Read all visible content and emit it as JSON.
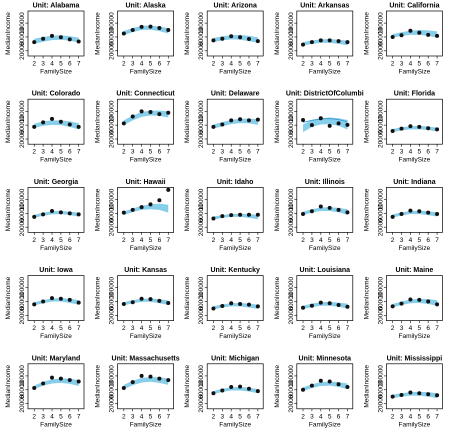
{
  "chart_data": {
    "type": "scatter",
    "layout": "5x5 small multiples",
    "xlabel": "FamilySize",
    "ylabel": "MedianIncome",
    "x_ticks": [
      2,
      3,
      4,
      5,
      6,
      7
    ],
    "y_ticks": [
      20000,
      60000,
      100000
    ],
    "y_tick_labels": [
      "20000",
      "60000",
      "100000"
    ],
    "xlim": [
      1.3,
      7.6
    ],
    "ylim": [
      5000,
      135000
    ],
    "colors": {
      "band": "#87CEEB",
      "point": "#111111",
      "line": "#3399cc"
    },
    "x": [
      2,
      3,
      4,
      5,
      6,
      7
    ],
    "panels": [
      {
        "title": "Unit: Alabama",
        "y": [
          45000,
          55000,
          63000,
          59000,
          53000,
          47000
        ],
        "band": [
          [
            40000,
            55000
          ],
          [
            46000,
            60000
          ],
          [
            51000,
            64000
          ],
          [
            52000,
            65000
          ],
          [
            49000,
            62000
          ],
          [
            44000,
            58000
          ]
        ]
      },
      {
        "title": "Unit: Alaska",
        "y": [
          70000,
          80000,
          89000,
          90000,
          86000,
          80000
        ],
        "band": [
          [
            65000,
            77000
          ],
          [
            74000,
            86000
          ],
          [
            80000,
            92000
          ],
          [
            81000,
            93000
          ],
          [
            77000,
            90000
          ],
          [
            70000,
            85000
          ]
        ]
      },
      {
        "title": "Unit: Arizona",
        "y": [
          50000,
          55000,
          62000,
          59000,
          54000,
          48000
        ],
        "band": [
          [
            45000,
            57000
          ],
          [
            50000,
            62000
          ],
          [
            53000,
            65000
          ],
          [
            52000,
            66000
          ],
          [
            48000,
            63000
          ],
          [
            43000,
            59000
          ]
        ]
      },
      {
        "title": "Unit: Arkansas",
        "y": [
          38000,
          45000,
          50000,
          50000,
          48000,
          45000
        ],
        "band": [
          [
            35000,
            45000
          ],
          [
            40000,
            50000
          ],
          [
            43000,
            53000
          ],
          [
            43000,
            54000
          ],
          [
            40000,
            52000
          ],
          [
            36000,
            49000
          ]
        ]
      },
      {
        "title": "Unit: California",
        "y": [
          60000,
          65000,
          78000,
          72000,
          66000,
          63000
        ],
        "band": [
          [
            58000,
            68000
          ],
          [
            63000,
            74000
          ],
          [
            66000,
            78000
          ],
          [
            66000,
            80000
          ],
          [
            63000,
            79000
          ],
          [
            58000,
            76000
          ]
        ]
      },
      {
        "title": "Unit: Colorado",
        "y": [
          55000,
          68000,
          78000,
          70000,
          62000,
          55000
        ],
        "band": [
          [
            52000,
            64000
          ],
          [
            58000,
            71000
          ],
          [
            61000,
            74000
          ],
          [
            60000,
            74000
          ],
          [
            55000,
            71000
          ],
          [
            48000,
            66000
          ]
        ]
      },
      {
        "title": "Unit: Connecticut",
        "y": [
          65000,
          85000,
          100000,
          98000,
          92000,
          96000
        ],
        "band": [
          [
            60000,
            74000
          ],
          [
            74000,
            88000
          ],
          [
            84000,
            98000
          ],
          [
            88000,
            102000
          ],
          [
            87000,
            102000
          ],
          [
            82000,
            100000
          ]
        ]
      },
      {
        "title": "Unit: Delaware",
        "y": [
          55000,
          62000,
          74000,
          77000,
          74000,
          76000
        ],
        "band": [
          [
            50000,
            62000
          ],
          [
            57000,
            69000
          ],
          [
            63000,
            75000
          ],
          [
            66000,
            79000
          ],
          [
            65000,
            79000
          ],
          [
            61000,
            77000
          ]
        ]
      },
      {
        "title": "Unit: DistrictOfColumbi",
        "y": [
          75000,
          60000,
          80000,
          58000,
          65000,
          61000
        ],
        "band": [
          [
            40000,
            62000
          ],
          [
            55000,
            75000
          ],
          [
            62000,
            80000
          ],
          [
            63000,
            82000
          ],
          [
            58000,
            80000
          ],
          [
            48000,
            75000
          ]
        ],
        "extra_line": [
          68000,
          74000,
          78000,
          79000,
          76000,
          70000
        ]
      },
      {
        "title": "Unit: Florida",
        "y": [
          43000,
          50000,
          57000,
          55000,
          51000,
          48000
        ],
        "band": [
          [
            40000,
            49000
          ],
          [
            45000,
            54000
          ],
          [
            48000,
            57000
          ],
          [
            48000,
            58000
          ],
          [
            46000,
            56000
          ],
          [
            42000,
            53000
          ]
        ]
      },
      {
        "title": "Unit: Georgia",
        "y": [
          50000,
          57000,
          67000,
          63000,
          60000,
          57000
        ],
        "band": [
          [
            47000,
            56000
          ],
          [
            53000,
            62000
          ],
          [
            57000,
            66000
          ],
          [
            58000,
            67000
          ],
          [
            55000,
            65000
          ],
          [
            51000,
            62000
          ]
        ]
      },
      {
        "title": "Unit: Hawaii",
        "y": [
          62000,
          70000,
          78000,
          86000,
          98000,
          128000
        ],
        "band": [
          [
            55000,
            65000
          ],
          [
            64000,
            74000
          ],
          [
            70000,
            82000
          ],
          [
            72000,
            86000
          ],
          [
            70000,
            88000
          ],
          [
            62000,
            85000
          ]
        ]
      },
      {
        "title": "Unit: Idaho",
        "y": [
          45000,
          52000,
          55000,
          56000,
          56000,
          56000
        ],
        "band": [
          [
            42000,
            51000
          ],
          [
            47000,
            55000
          ],
          [
            50000,
            58000
          ],
          [
            50000,
            59000
          ],
          [
            47000,
            58000
          ],
          [
            43000,
            56000
          ]
        ]
      },
      {
        "title": "Unit: Illinois",
        "y": [
          58000,
          66000,
          80000,
          76000,
          70000,
          63000
        ],
        "band": [
          [
            55000,
            65000
          ],
          [
            62000,
            72000
          ],
          [
            67000,
            77000
          ],
          [
            67000,
            78000
          ],
          [
            63000,
            76000
          ],
          [
            56000,
            72000
          ]
        ]
      },
      {
        "title": "Unit: Indiana",
        "y": [
          50000,
          58000,
          68000,
          66000,
          62000,
          58000
        ],
        "band": [
          [
            48000,
            57000
          ],
          [
            54000,
            63000
          ],
          [
            58000,
            67000
          ],
          [
            58000,
            68000
          ],
          [
            55000,
            66000
          ],
          [
            51000,
            63000
          ]
        ]
      },
      {
        "title": "Unit: Iowa",
        "y": [
          52000,
          60000,
          70000,
          68000,
          65000,
          57000
        ],
        "band": [
          [
            49000,
            58000
          ],
          [
            55000,
            64000
          ],
          [
            60000,
            69000
          ],
          [
            60000,
            70000
          ],
          [
            56000,
            68000
          ],
          [
            51000,
            64000
          ]
        ]
      },
      {
        "title": "Unit: Kansas",
        "y": [
          53000,
          58000,
          68000,
          67000,
          62000,
          56000
        ],
        "band": [
          [
            49000,
            58000
          ],
          [
            55000,
            64000
          ],
          [
            59000,
            68000
          ],
          [
            59000,
            69000
          ],
          [
            55000,
            67000
          ],
          [
            50000,
            63000
          ]
        ]
      },
      {
        "title": "Unit: Kentucky",
        "y": [
          40000,
          47000,
          55000,
          53000,
          51000,
          46000
        ],
        "band": [
          [
            37000,
            46000
          ],
          [
            43000,
            52000
          ],
          [
            46000,
            55000
          ],
          [
            46000,
            56000
          ],
          [
            43000,
            54000
          ],
          [
            39000,
            51000
          ]
        ]
      },
      {
        "title": "Unit: Louisiana",
        "y": [
          42000,
          48000,
          57000,
          55000,
          50000,
          45000
        ],
        "band": [
          [
            38000,
            48000
          ],
          [
            44000,
            54000
          ],
          [
            48000,
            58000
          ],
          [
            48000,
            59000
          ],
          [
            45000,
            57000
          ],
          [
            40000,
            54000
          ]
        ]
      },
      {
        "title": "Unit: Maine",
        "y": [
          46000,
          54000,
          66000,
          65000,
          60000,
          52000
        ],
        "band": [
          [
            43000,
            53000
          ],
          [
            50000,
            60000
          ],
          [
            55000,
            66000
          ],
          [
            56000,
            68000
          ],
          [
            53000,
            67000
          ],
          [
            48000,
            64000
          ]
        ]
      },
      {
        "title": "Unit: Maryland",
        "y": [
          65000,
          78000,
          95000,
          92000,
          88000,
          84000
        ],
        "band": [
          [
            62000,
            72000
          ],
          [
            72000,
            83000
          ],
          [
            78000,
            90000
          ],
          [
            80000,
            93000
          ],
          [
            77000,
            92000
          ],
          [
            71000,
            88000
          ]
        ]
      },
      {
        "title": "Unit: Massachusetts",
        "y": [
          65000,
          82000,
          100000,
          98000,
          92000,
          88000
        ],
        "band": [
          [
            62000,
            74000
          ],
          [
            73000,
            86000
          ],
          [
            81000,
            94000
          ],
          [
            83000,
            97000
          ],
          [
            80000,
            96000
          ],
          [
            74000,
            92000
          ]
        ]
      },
      {
        "title": "Unit: Michigan",
        "y": [
          50000,
          58000,
          68000,
          69000,
          63000,
          56000
        ],
        "band": [
          [
            47000,
            56000
          ],
          [
            54000,
            63000
          ],
          [
            58000,
            67000
          ],
          [
            58000,
            68000
          ],
          [
            55000,
            66000
          ],
          [
            50000,
            62000
          ]
        ]
      },
      {
        "title": "Unit: Minnesota",
        "y": [
          60000,
          72000,
          86000,
          84000,
          76000,
          68000
        ],
        "band": [
          [
            56000,
            67000
          ],
          [
            65000,
            76000
          ],
          [
            71000,
            82000
          ],
          [
            72000,
            84000
          ],
          [
            68000,
            82000
          ],
          [
            62000,
            78000
          ]
        ]
      },
      {
        "title": "Unit: Mississippi",
        "y": [
          40000,
          45000,
          52000,
          50000,
          47000,
          44000
        ],
        "band": [
          [
            36000,
            46000
          ],
          [
            40000,
            50000
          ],
          [
            43000,
            53000
          ],
          [
            43000,
            54000
          ],
          [
            40000,
            53000
          ],
          [
            36000,
            50000
          ]
        ]
      }
    ]
  }
}
